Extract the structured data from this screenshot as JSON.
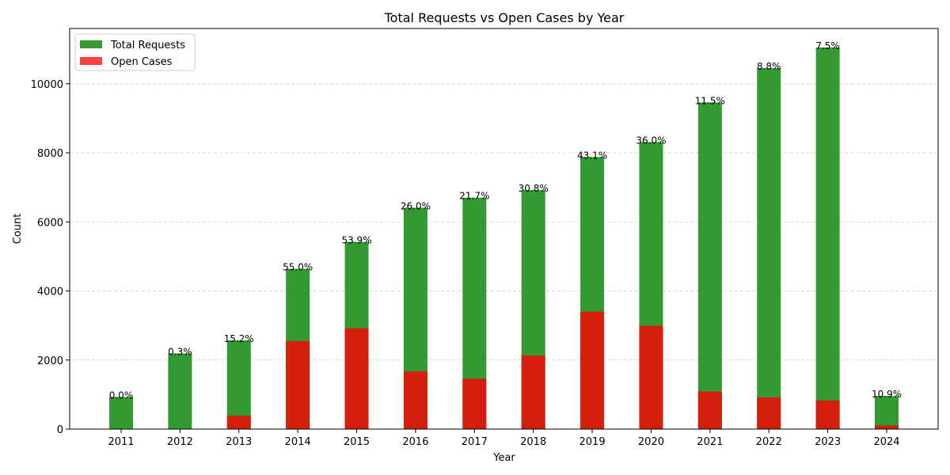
{
  "chart_data": {
    "type": "bar",
    "stacked": "overlay",
    "title": "Total Requests vs Open Cases by Year",
    "xlabel": "Year",
    "ylabel": "Count",
    "ylim": [
      0,
      11600
    ],
    "yticks": [
      0,
      2000,
      4000,
      6000,
      8000,
      10000
    ],
    "grid": "y-dashed",
    "legend_position": "top-left",
    "categories": [
      "2011",
      "2012",
      "2013",
      "2014",
      "2015",
      "2016",
      "2017",
      "2018",
      "2019",
      "2020",
      "2021",
      "2022",
      "2023",
      "2024"
    ],
    "series": [
      {
        "name": "Total Requests",
        "color": "#339933",
        "values": [
          930,
          2190,
          2570,
          4640,
          5420,
          6410,
          6700,
          6920,
          7880,
          8310,
          9460,
          10450,
          11050,
          960
        ]
      },
      {
        "name": "Open Cases",
        "color": "#d41f0c",
        "legend_color": "#ff4040",
        "values": [
          0,
          7,
          390,
          2550,
          2920,
          1670,
          1460,
          2130,
          3400,
          2990,
          1090,
          920,
          830,
          105
        ]
      }
    ],
    "data_labels": [
      "0.0%",
      "0.3%",
      "15.2%",
      "55.0%",
      "53.9%",
      "26.0%",
      "21.7%",
      "30.8%",
      "43.1%",
      "36.0%",
      "11.5%",
      "8.8%",
      "7.5%",
      "10.9%"
    ]
  }
}
